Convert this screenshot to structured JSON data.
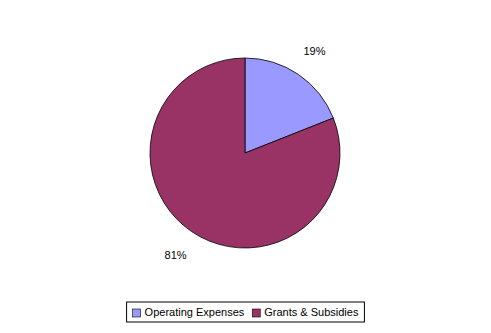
{
  "chart_data": {
    "type": "pie",
    "categories": [
      "Operating Expenses",
      "Grants & Subsidies"
    ],
    "values": [
      19,
      81
    ],
    "value_labels": [
      "19%",
      "81%"
    ],
    "colors": [
      "#9999ff",
      "#993366"
    ],
    "data_labels": true,
    "legend": "bottom"
  }
}
